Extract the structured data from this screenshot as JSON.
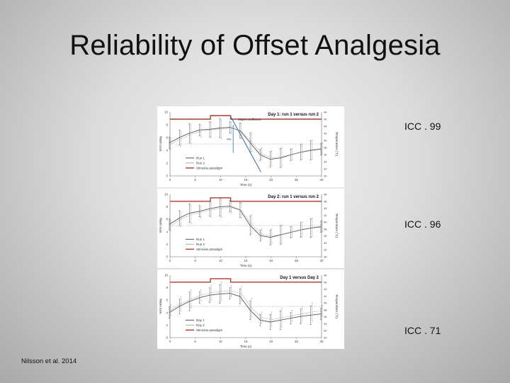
{
  "slide": {
    "title": "Reliability of Offset Analgesia",
    "citation": "Nilsson et al. 2014"
  },
  "icc_labels": [
    "ICC . 99",
    "ICC . 96",
    "ICC . 71"
  ],
  "colors": {
    "stimulus": "#b03a2e",
    "run1": "#555555",
    "run2": "#aaaaaa",
    "slope": "#2e6ea8"
  },
  "chart_data": [
    {
      "type": "line",
      "title": "Day 1: run 1 versus run 2",
      "xlabel": "Time (s)",
      "ylabel": "VAS rating",
      "y2label": "Temperature (°C)",
      "xlim": [
        0,
        30
      ],
      "ylim": [
        0,
        10
      ],
      "y2lim": [
        30,
        48
      ],
      "x_ticks": [
        "0",
        "5",
        "10",
        "15",
        "20",
        "25",
        "30"
      ],
      "y_ticks": [
        "0",
        "2",
        "4",
        "6",
        "8",
        "10"
      ],
      "y2_ticks": [
        "30",
        "32",
        "34",
        "36",
        "38",
        "40",
        "42",
        "44",
        "46",
        "48"
      ],
      "legend": [
        "Run 1",
        "Run 2",
        "Stimulus paradigm"
      ],
      "annotation": "Slope coefficient",
      "annotation2": "VAS",
      "x": [
        0,
        2,
        4,
        6,
        8,
        10,
        12,
        14,
        16,
        18,
        20,
        22,
        24,
        26,
        28,
        30
      ],
      "series": [
        {
          "name": "Run 1",
          "values": [
            5.2,
            6.0,
            6.7,
            7.2,
            7.3,
            7.5,
            7.6,
            7.1,
            5.2,
            3.3,
            2.6,
            2.8,
            3.3,
            3.7,
            4.0,
            4.2
          ]
        },
        {
          "name": "Run 2",
          "values": [
            5.0,
            5.8,
            6.5,
            7.0,
            7.2,
            7.3,
            7.5,
            7.0,
            5.3,
            3.5,
            2.8,
            3.0,
            3.4,
            3.8,
            4.1,
            4.3
          ]
        },
        {
          "name": "Stimulus paradigm",
          "values": [
            46,
            46,
            46,
            46,
            47,
            47,
            46,
            46,
            46,
            46,
            46,
            46,
            46,
            46,
            46,
            46
          ]
        }
      ]
    },
    {
      "type": "line",
      "title": "Day 2: run 1 versus run 2",
      "xlabel": "Time (s)",
      "ylabel": "VAS rating",
      "y2label": "Temperature (°C)",
      "xlim": [
        0,
        30
      ],
      "ylim": [
        0,
        10
      ],
      "y2lim": [
        30,
        48
      ],
      "x_ticks": [
        "0",
        "5",
        "10",
        "15",
        "20",
        "25",
        "30"
      ],
      "y_ticks": [
        "0",
        "2",
        "4",
        "6",
        "8",
        "10"
      ],
      "y2_ticks": [
        "30",
        "32",
        "34",
        "36",
        "38",
        "40",
        "42",
        "44",
        "46",
        "48"
      ],
      "legend": [
        "Run 1",
        "Run 2",
        "Stimulus paradigm"
      ],
      "x": [
        0,
        2,
        4,
        6,
        8,
        10,
        12,
        14,
        16,
        18,
        20,
        22,
        24,
        26,
        28,
        30
      ],
      "series": [
        {
          "name": "Run 1",
          "values": [
            5.2,
            6.2,
            7.0,
            7.3,
            7.7,
            8.0,
            8.1,
            7.5,
            5.0,
            3.4,
            3.1,
            3.5,
            3.9,
            4.3,
            4.6,
            4.8
          ]
        },
        {
          "name": "Run 2",
          "values": [
            5.0,
            6.0,
            6.8,
            7.1,
            7.5,
            7.8,
            7.9,
            7.4,
            5.2,
            3.6,
            3.3,
            3.6,
            4.0,
            4.4,
            4.7,
            4.9
          ]
        },
        {
          "name": "Stimulus paradigm",
          "values": [
            46,
            46,
            46,
            46,
            47,
            47,
            46,
            46,
            46,
            46,
            46,
            46,
            46,
            46,
            46,
            46
          ]
        }
      ]
    },
    {
      "type": "line",
      "title": "Day 1 versus Day 2",
      "xlabel": "Time (s)",
      "ylabel": "VAS rating",
      "y2label": "Temperature (°C)",
      "xlim": [
        0,
        30
      ],
      "ylim": [
        0,
        10
      ],
      "y2lim": [
        30,
        48
      ],
      "x_ticks": [
        "0",
        "5",
        "10",
        "15",
        "20",
        "25",
        "30"
      ],
      "y_ticks": [
        "0",
        "2",
        "4",
        "6",
        "8",
        "10"
      ],
      "y2_ticks": [
        "30",
        "32",
        "34",
        "36",
        "38",
        "40",
        "42",
        "44",
        "46",
        "48"
      ],
      "legend": [
        "Day 1",
        "Day 2",
        "Stimulus paradigm"
      ],
      "x": [
        0,
        2,
        4,
        6,
        8,
        10,
        12,
        14,
        16,
        18,
        20,
        22,
        24,
        26,
        28,
        30
      ],
      "series": [
        {
          "name": "Day 1",
          "values": [
            4.0,
            5.0,
            5.8,
            6.4,
            6.8,
            7.0,
            7.1,
            6.6,
            4.4,
            2.8,
            2.5,
            2.8,
            3.1,
            3.4,
            3.6,
            3.8
          ]
        },
        {
          "name": "Day 2",
          "values": [
            4.4,
            5.4,
            6.2,
            6.8,
            7.2,
            7.4,
            7.5,
            7.0,
            4.8,
            3.2,
            2.9,
            3.2,
            3.5,
            3.8,
            4.1,
            4.3
          ]
        },
        {
          "name": "Stimulus paradigm",
          "values": [
            46,
            46,
            46,
            46,
            47,
            47,
            46,
            46,
            46,
            46,
            46,
            46,
            46,
            46,
            46,
            46
          ]
        }
      ]
    }
  ]
}
